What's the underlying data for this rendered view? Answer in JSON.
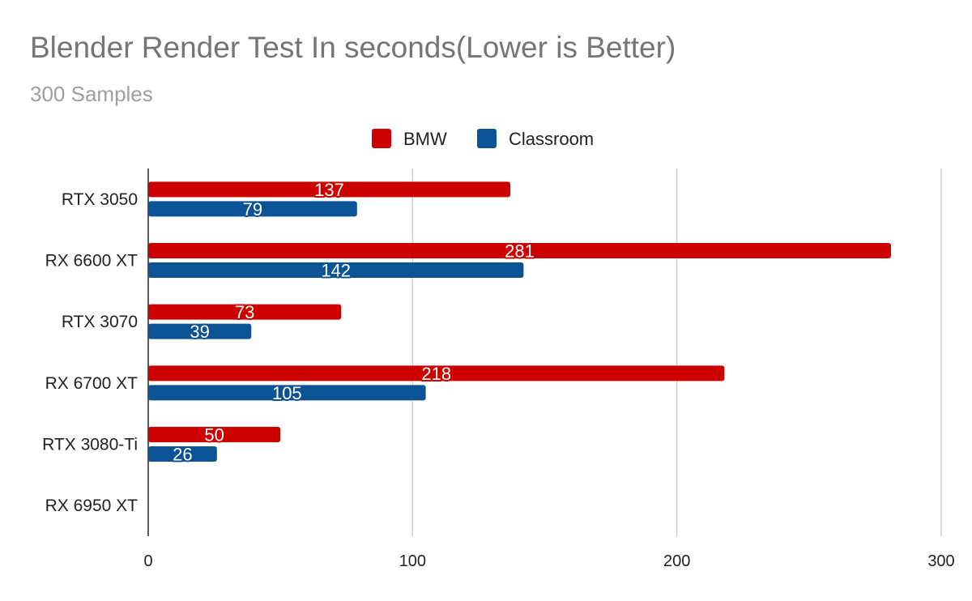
{
  "chart_data": {
    "type": "bar",
    "orientation": "horizontal",
    "title": "Blender Render Test In seconds(Lower is Better)",
    "subtitle": "300 Samples",
    "xlabel": "",
    "ylabel": "",
    "categories": [
      "RTX 3050",
      "RX 6600 XT",
      "RTX 3070",
      "RX 6700 XT",
      "RTX 3080-Ti",
      "RX 6950 XT"
    ],
    "series": [
      {
        "name": "BMW",
        "color": "#cc0000",
        "values": [
          137,
          281,
          73,
          218,
          50,
          null
        ]
      },
      {
        "name": "Classroom",
        "color": "#0b5394",
        "values": [
          79,
          142,
          39,
          105,
          26,
          null
        ]
      }
    ],
    "xlim": [
      0,
      300
    ],
    "xticks": [
      "0",
      "100",
      "200",
      "300"
    ],
    "grid": true,
    "legend_position": "top"
  }
}
